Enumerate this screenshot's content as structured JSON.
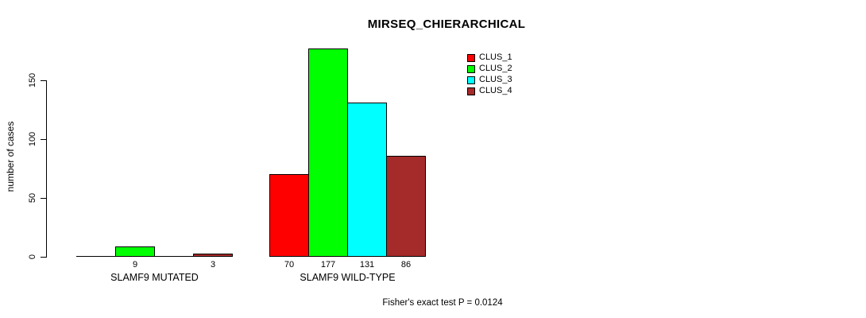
{
  "chart_data": {
    "type": "bar",
    "title": "MIRSEQ_CHIERARCHICAL",
    "xlabel": "",
    "ylabel": "number of cases",
    "categories": [
      "SLAMF9 MUTATED",
      "SLAMF9 WILD-TYPE"
    ],
    "series": [
      {
        "name": "CLUS_1",
        "color": "#FF0000",
        "values": [
          0,
          70
        ]
      },
      {
        "name": "CLUS_2",
        "color": "#00FF00",
        "values": [
          9,
          177
        ]
      },
      {
        "name": "CLUS_3",
        "color": "#00FFFF",
        "values": [
          0,
          131
        ]
      },
      {
        "name": "CLUS_4",
        "color": "#A52A2A",
        "values": [
          3,
          86
        ]
      }
    ],
    "bar_value_labels": [
      "9",
      "3",
      "70",
      "177",
      "131",
      "86"
    ],
    "yticks": [
      0,
      50,
      100,
      150
    ],
    "ylim": [
      0,
      180
    ],
    "grid": false,
    "legend_position": "top-right",
    "legend_entries": [
      "CLUS_1",
      "CLUS_2",
      "CLUS_3",
      "CLUS_4"
    ],
    "annotation": "Fisher's exact test P = 0.0124"
  },
  "colors": {
    "background": "#FFFFFF",
    "axis": "#000000",
    "text": "#000000"
  }
}
